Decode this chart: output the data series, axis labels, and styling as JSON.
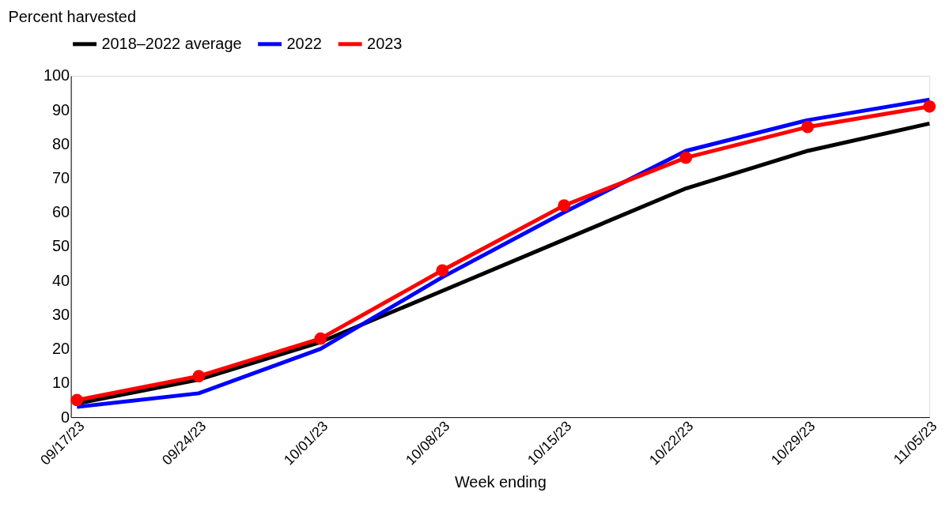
{
  "chart_data": {
    "type": "line",
    "ylabel": "Percent harvested",
    "xlabel": "Week ending",
    "categories": [
      "09/17/23",
      "09/24/23",
      "10/01/23",
      "10/08/23",
      "10/15/23",
      "10/22/23",
      "10/29/23",
      "11/05/23"
    ],
    "series": [
      {
        "name": "2018–2022 average",
        "color": "#000000",
        "marker": "none",
        "values": [
          4,
          11,
          22,
          37,
          52,
          67,
          78,
          86
        ]
      },
      {
        "name": "2022",
        "color": "#0000ff",
        "marker": "none",
        "values": [
          3,
          7,
          20,
          41,
          60,
          78,
          87,
          93
        ]
      },
      {
        "name": "2023",
        "color": "#ff0000",
        "marker": "circle",
        "values": [
          5,
          12,
          23,
          43,
          62,
          76,
          85,
          91
        ]
      }
    ],
    "ylim": [
      0,
      100
    ],
    "yticks": [
      0,
      10,
      20,
      30,
      40,
      50,
      60,
      70,
      80,
      90,
      100
    ],
    "grid": false,
    "legend": "top",
    "line_style": "solid"
  }
}
